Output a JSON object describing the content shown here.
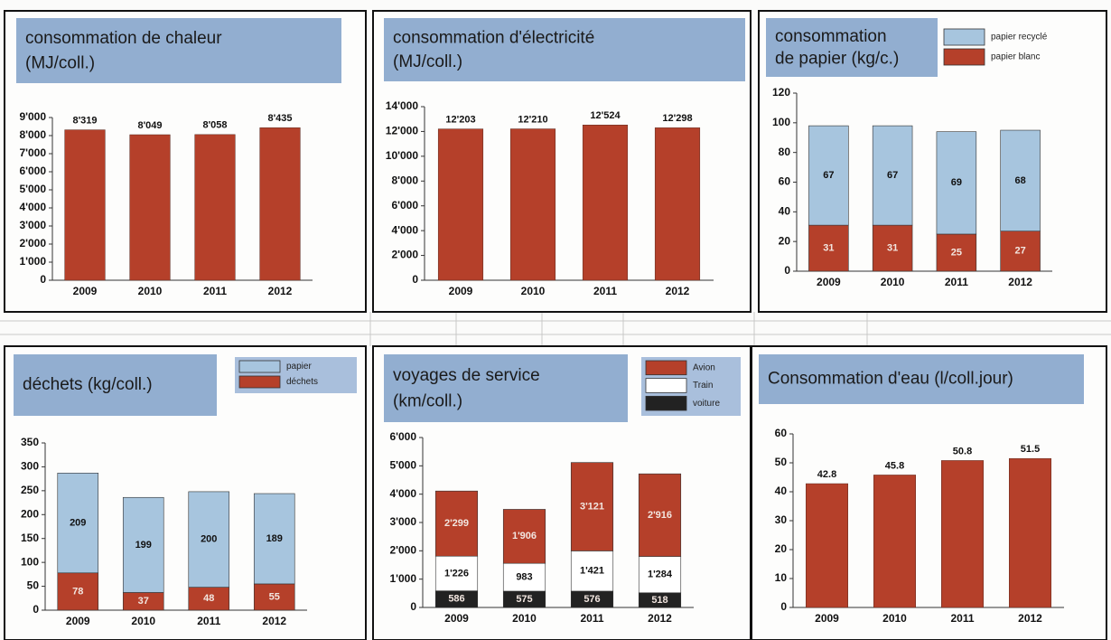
{
  "chart_data": [
    {
      "type": "bar",
      "title": "consommation de chaleur",
      "subtitle": "(MJ/coll.)",
      "categories": [
        "2009",
        "2010",
        "2011",
        "2012"
      ],
      "color": "#b5402a",
      "values": [
        8319,
        8049,
        8058,
        8435
      ],
      "value_labels": [
        "8'319",
        "8'049",
        "8'058",
        "8'435"
      ],
      "ylim": [
        0,
        9000
      ],
      "yticks": [
        0,
        {
          "value": 1000,
          "label": "1'000"
        },
        {
          "value": 2000,
          "label": "2'000"
        },
        {
          "value": 3000,
          "label": "3'000"
        },
        {
          "value": 4000,
          "label": "4'000"
        },
        {
          "value": 5000,
          "label": "5'000"
        },
        {
          "value": 6000,
          "label": "6'000"
        },
        {
          "value": 7000,
          "label": "7'000"
        },
        {
          "value": 8000,
          "label": "8'000"
        },
        {
          "value": 9000,
          "label": "9'000"
        }
      ]
    },
    {
      "type": "bar",
      "title": "consommation d'électricité",
      "subtitle": "(MJ/coll.)",
      "categories": [
        "2009",
        "2010",
        "2011",
        "2012"
      ],
      "color": "#b5402a",
      "values": [
        12203,
        12210,
        12524,
        12298
      ],
      "value_labels": [
        "12'203",
        "12'210",
        "12'524",
        "12'298"
      ],
      "ylim": [
        0,
        14000
      ],
      "yticks": [
        0,
        {
          "value": 2000,
          "label": "2'000"
        },
        {
          "value": 4000,
          "label": "4'000"
        },
        {
          "value": 6000,
          "label": "6'000"
        },
        {
          "value": 8000,
          "label": "8'000"
        },
        {
          "value": 10000,
          "label": "10'000"
        },
        {
          "value": 12000,
          "label": "12'000"
        },
        {
          "value": 14000,
          "label": "14'000"
        }
      ]
    },
    {
      "type": "stacked_bar",
      "title": "consommation",
      "subtitle": "de papier (kg/c.)",
      "categories": [
        "2009",
        "2010",
        "2011",
        "2012"
      ],
      "series": [
        {
          "name": "papier blanc",
          "color": "#b5402a",
          "values": [
            31,
            31,
            25,
            27
          ]
        },
        {
          "name": "papier recyclé",
          "color": "#a7c5de",
          "values": [
            67,
            67,
            69,
            68
          ]
        }
      ],
      "ylim": [
        0,
        120
      ],
      "yticks": [
        0,
        20,
        40,
        60,
        80,
        100,
        120
      ]
    },
    {
      "type": "stacked_bar",
      "title": "déchets (kg/coll.)",
      "categories": [
        "2009",
        "2010",
        "2011",
        "2012"
      ],
      "series": [
        {
          "name": "déchets",
          "color": "#b5402a",
          "values": [
            78,
            37,
            48,
            55
          ]
        },
        {
          "name": "papier",
          "color": "#a7c5de",
          "values": [
            209,
            199,
            200,
            189
          ]
        }
      ],
      "ylim": [
        0,
        350
      ],
      "yticks": [
        0,
        50,
        100,
        150,
        200,
        250,
        300,
        350
      ]
    },
    {
      "type": "stacked_bar",
      "title": "voyages de service",
      "subtitle": "(km/coll.)",
      "categories": [
        "2009",
        "2010",
        "2011",
        "2012"
      ],
      "series": [
        {
          "name": "voiture",
          "color": "#222222",
          "values": [
            586,
            575,
            576,
            518
          ]
        },
        {
          "name": "Train",
          "color": "#ffffff",
          "values": [
            1226,
            983,
            1421,
            1284
          ],
          "value_labels": [
            "1'226",
            "983",
            "1'421",
            "1'284"
          ]
        },
        {
          "name": "Avion",
          "color": "#b5402a",
          "values": [
            2299,
            1906,
            3121,
            2916
          ],
          "value_labels": [
            "2'299",
            "1'906",
            "3'121",
            "2'916"
          ]
        }
      ],
      "ylim": [
        0,
        6000
      ],
      "yticks": [
        0,
        {
          "value": 1000,
          "label": "1'000"
        },
        {
          "value": 2000,
          "label": "2'000"
        },
        {
          "value": 3000,
          "label": "3'000"
        },
        {
          "value": 4000,
          "label": "4'000"
        },
        {
          "value": 5000,
          "label": "5'000"
        },
        {
          "value": 6000,
          "label": "6'000"
        }
      ]
    },
    {
      "type": "bar",
      "title": "Consommation d'eau (l/coll.jour)",
      "categories": [
        "2009",
        "2010",
        "2011",
        "2012"
      ],
      "color": "#b5402a",
      "values": [
        42.8,
        45.8,
        50.8,
        51.5
      ],
      "ylim": [
        0,
        60
      ],
      "yticks": [
        0,
        10,
        20,
        30,
        40,
        50,
        60
      ]
    }
  ]
}
